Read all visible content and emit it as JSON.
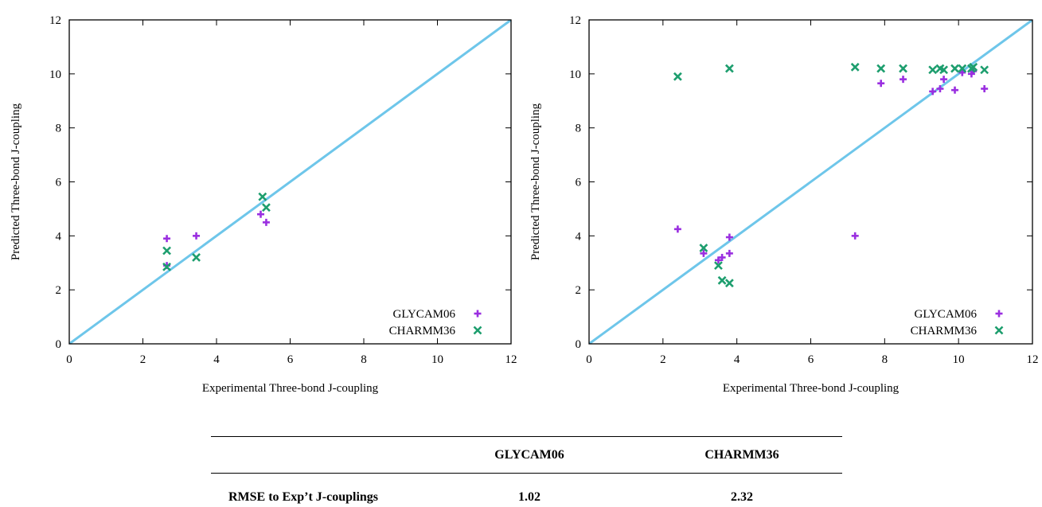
{
  "chart_data": [
    {
      "type": "scatter",
      "title": "",
      "xlabel": "Experimental Three-bond J-coupling",
      "ylabel": "Predicted Three-bond J-coupling",
      "xlim": [
        0,
        12
      ],
      "ylim": [
        0,
        12
      ],
      "xticks": [
        0,
        2,
        4,
        6,
        8,
        10,
        12
      ],
      "yticks": [
        0,
        2,
        4,
        6,
        8,
        10,
        12
      ],
      "grid": false,
      "legend_position": "bottom-right",
      "reference_line": {
        "name": "",
        "color": "#6ec6ea",
        "points": [
          [
            0,
            0
          ],
          [
            12,
            12
          ]
        ]
      },
      "series": [
        {
          "name": "GLYCAM06",
          "marker": "plus",
          "color": "#9a2fe0",
          "points": [
            [
              2.65,
              3.9
            ],
            [
              2.65,
              2.9
            ],
            [
              3.45,
              4.0
            ],
            [
              5.2,
              4.8
            ],
            [
              5.35,
              4.5
            ]
          ]
        },
        {
          "name": "CHARMM36",
          "marker": "cross",
          "color": "#1d9e6e",
          "points": [
            [
              2.65,
              3.45
            ],
            [
              2.65,
              2.85
            ],
            [
              3.45,
              3.2
            ],
            [
              5.25,
              5.45
            ],
            [
              5.35,
              5.05
            ]
          ]
        }
      ]
    },
    {
      "type": "scatter",
      "title": "",
      "xlabel": "Experimental Three-bond J-coupling",
      "ylabel": "Predicted Three-bond J-coupling",
      "xlim": [
        0,
        12
      ],
      "ylim": [
        0,
        12
      ],
      "xticks": [
        0,
        2,
        4,
        6,
        8,
        10,
        12
      ],
      "yticks": [
        0,
        2,
        4,
        6,
        8,
        10,
        12
      ],
      "grid": false,
      "legend_position": "bottom-right",
      "reference_line": {
        "name": "",
        "color": "#6ec6ea",
        "points": [
          [
            0,
            0
          ],
          [
            12,
            12
          ]
        ]
      },
      "series": [
        {
          "name": "GLYCAM06",
          "marker": "plus",
          "color": "#9a2fe0",
          "points": [
            [
              2.4,
              4.25
            ],
            [
              3.1,
              3.35
            ],
            [
              3.5,
              3.1
            ],
            [
              3.6,
              3.2
            ],
            [
              3.8,
              3.35
            ],
            [
              3.8,
              3.95
            ],
            [
              7.2,
              4.0
            ],
            [
              7.9,
              9.65
            ],
            [
              8.5,
              9.8
            ],
            [
              9.3,
              9.35
            ],
            [
              9.5,
              9.45
            ],
            [
              9.6,
              9.8
            ],
            [
              9.9,
              9.4
            ],
            [
              10.1,
              10.05
            ],
            [
              10.35,
              10.0
            ],
            [
              10.4,
              10.1
            ],
            [
              10.7,
              9.45
            ]
          ]
        },
        {
          "name": "CHARMM36",
          "marker": "cross",
          "color": "#1d9e6e",
          "points": [
            [
              2.4,
              9.9
            ],
            [
              3.8,
              10.2
            ],
            [
              3.1,
              3.55
            ],
            [
              3.5,
              2.9
            ],
            [
              3.6,
              2.35
            ],
            [
              3.8,
              2.25
            ],
            [
              7.2,
              10.25
            ],
            [
              7.9,
              10.2
            ],
            [
              8.5,
              10.2
            ],
            [
              9.3,
              10.15
            ],
            [
              9.5,
              10.2
            ],
            [
              9.6,
              10.15
            ],
            [
              9.9,
              10.2
            ],
            [
              10.1,
              10.2
            ],
            [
              10.35,
              10.2
            ],
            [
              10.4,
              10.25
            ],
            [
              10.7,
              10.15
            ]
          ]
        }
      ]
    }
  ],
  "table": {
    "columns": [
      "",
      "GLYCAM06",
      "CHARMM36"
    ],
    "rows": [
      {
        "label": "RMSE to Exp’t J-couplings",
        "values": [
          "1.02",
          "2.32"
        ]
      }
    ]
  }
}
